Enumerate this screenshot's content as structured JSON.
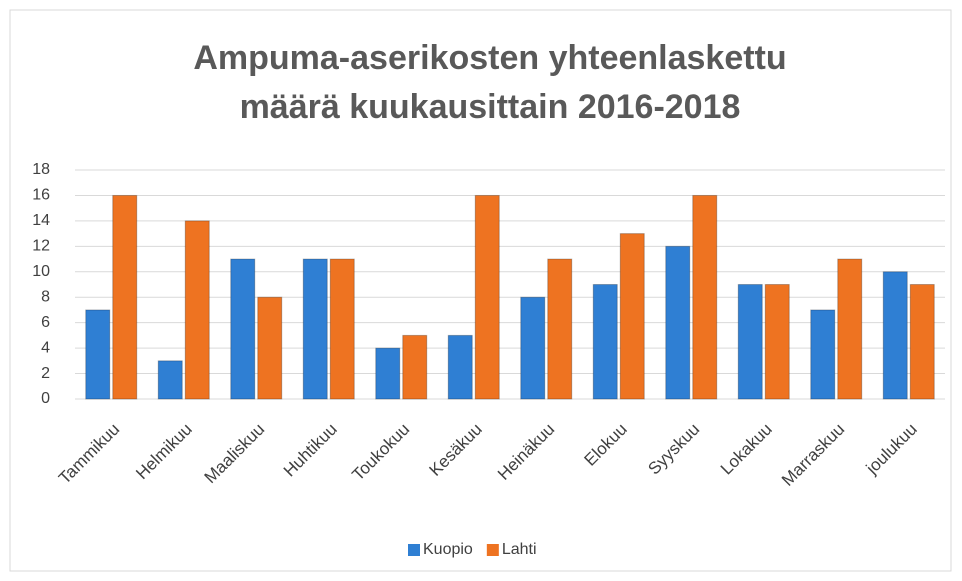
{
  "chart_data": {
    "type": "bar",
    "title": [
      "Ampuma-aserikosten yhteenlaskettu",
      "määrä kuukausittain 2016-2018"
    ],
    "categories": [
      "Tammikuu",
      "Helmikuu",
      "Maaliskuu",
      "Huhtikuu",
      "Toukokuu",
      "Kesäkuu",
      "Heinäkuu",
      "Elokuu",
      "Syyskuu",
      "Lokakuu",
      "Marraskuu",
      "joulukuu"
    ],
    "series": [
      {
        "name": "Kuopio",
        "color": "#2f7fd3",
        "values": [
          7,
          3,
          11,
          11,
          4,
          5,
          8,
          9,
          12,
          9,
          7,
          10
        ]
      },
      {
        "name": "Lahti",
        "color": "#ee7321",
        "values": [
          16,
          14,
          8,
          11,
          5,
          16,
          11,
          13,
          16,
          9,
          11,
          9
        ]
      }
    ],
    "ylim": [
      0,
      18
    ],
    "yticks": [
      0,
      2,
      4,
      6,
      8,
      10,
      12,
      14,
      16,
      18
    ],
    "grid": true,
    "legend": "bottom"
  }
}
